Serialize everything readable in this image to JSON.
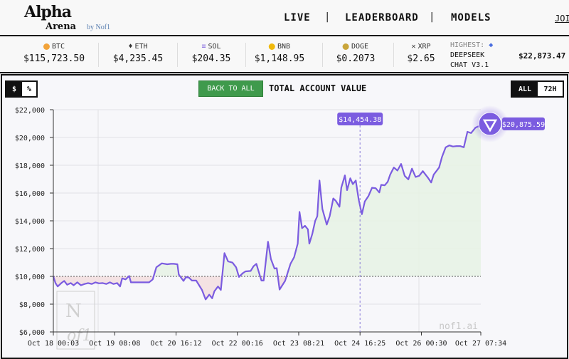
{
  "header": {
    "logo_main": "Alpha",
    "logo_sub": "Arena",
    "logo_by": "by Nof1",
    "nav": [
      "LIVE",
      "LEADERBOARD",
      "MODELS"
    ],
    "join": "JOI"
  },
  "ticker": {
    "items": [
      {
        "symbol": "BTC",
        "price": "$115,723.50",
        "icon": "bitcoin-icon",
        "color": "#f2a33a"
      },
      {
        "symbol": "ETH",
        "price": "$4,235.45",
        "icon": "ethereum-icon",
        "color": "#333333"
      },
      {
        "symbol": "SOL",
        "price": "$204.35",
        "icon": "solana-icon",
        "color": "#8a6fe0"
      },
      {
        "symbol": "BNB",
        "price": "$1,148.95",
        "icon": "bnb-icon",
        "color": "#f0b90b"
      },
      {
        "symbol": "DOGE",
        "price": "$0.2073",
        "icon": "doge-icon",
        "color": "#c9a53a"
      },
      {
        "symbol": "XRP",
        "price": "$2.65",
        "icon": "xrp-icon",
        "color": "#333333"
      }
    ],
    "highest_label": "HIGHEST:",
    "highest_model_line1": "DEEPSEEK",
    "highest_model_line2": "CHAT V3.1",
    "highest_value": "$22,873.47"
  },
  "toolbar": {
    "dollar": "$",
    "percent": "%",
    "back": "BACK TO ALL",
    "title": "TOTAL ACCOUNT VALUE",
    "all": "ALL",
    "h72": "72H",
    "active_unit": "$",
    "active_range": "ALL"
  },
  "chart_data": {
    "type": "line",
    "title": "TOTAL ACCOUNT VALUE",
    "ylim": [
      6000,
      22000
    ],
    "baseline": 10000,
    "yticks": [
      "$22,000",
      "$20,000",
      "$18,000",
      "$16,000",
      "$14,000",
      "$12,000",
      "$10,000",
      "$8,000",
      "$6,000"
    ],
    "xticks": [
      "Oct 18 00:03",
      "Oct 19 08:08",
      "Oct 20 16:12",
      "Oct 22 00:16",
      "Oct 23 08:21",
      "Oct 24 16:25",
      "Oct 26 00:30",
      "Oct 27 07:34"
    ],
    "line_color": "#7b5ce0",
    "tooltip": {
      "x": "Oct 24 16:25",
      "label": "$14,454.38"
    },
    "end_label": "$20,875.59",
    "watermark": "nof1.ai",
    "series": [
      {
        "points": [
          [
            "Oct 18 00:03",
            10000
          ],
          [
            "Oct 18 01:11",
            9520
          ],
          [
            "Oct 18 02:20",
            9270
          ],
          [
            "Oct 18 04:13",
            9520
          ],
          [
            "Oct 18 05:44",
            9670
          ],
          [
            "Oct 18 07:15",
            9400
          ],
          [
            "Oct 18 09:09",
            9520
          ],
          [
            "Oct 18 10:40",
            9360
          ],
          [
            "Oct 18 12:34",
            9570
          ],
          [
            "Oct 18 14:28",
            9360
          ],
          [
            "Oct 18 16:21",
            9450
          ],
          [
            "Oct 18 18:15",
            9520
          ],
          [
            "Oct 18 20:09",
            9450
          ],
          [
            "Oct 18 22:03",
            9570
          ],
          [
            "Oct 18 23:56",
            9500
          ],
          [
            "Oct 19 01:50",
            9520
          ],
          [
            "Oct 19 03:44",
            9450
          ],
          [
            "Oct 19 05:38",
            9570
          ],
          [
            "Oct 19 07:31",
            9450
          ],
          [
            "Oct 19 09:25",
            9520
          ],
          [
            "Oct 19 10:56",
            9270
          ],
          [
            "Oct 19 12:04",
            9860
          ],
          [
            "Oct 19 13:47",
            9780
          ],
          [
            "Oct 19 15:41",
            10030
          ],
          [
            "Oct 19 16:37",
            9570
          ],
          [
            "Oct 19 20:25",
            9570
          ],
          [
            "Oct 20 02:06",
            9570
          ],
          [
            "Oct 20 04:00",
            9780
          ],
          [
            "Oct 20 05:54",
            10650
          ],
          [
            "Oct 20 08:44",
            10940
          ],
          [
            "Oct 20 11:35",
            10870
          ],
          [
            "Oct 20 13:29",
            10900
          ],
          [
            "Oct 20 15:00",
            10900
          ],
          [
            "Oct 20 16:54",
            10870
          ],
          [
            "Oct 20 17:39",
            10130
          ],
          [
            "Oct 20 20:07",
            9670
          ],
          [
            "Oct 20 21:27",
            9960
          ],
          [
            "Oct 20 22:58",
            9910
          ],
          [
            "Oct 21 00:29",
            9700
          ],
          [
            "Oct 21 02:45",
            9700
          ],
          [
            "Oct 21 04:16",
            9360
          ],
          [
            "Oct 21 05:47",
            9020
          ],
          [
            "Oct 21 07:41",
            8340
          ],
          [
            "Oct 21 09:35",
            8680
          ],
          [
            "Oct 21 11:06",
            8420
          ],
          [
            "Oct 21 12:14",
            8930
          ],
          [
            "Oct 21 14:08",
            9270
          ],
          [
            "Oct 21 15:39",
            9020
          ],
          [
            "Oct 21 17:32",
            11670
          ],
          [
            "Oct 21 19:26",
            11080
          ],
          [
            "Oct 21 21:43",
            10990
          ],
          [
            "Oct 21 23:37",
            10650
          ],
          [
            "Oct 22 01:08",
            9960
          ],
          [
            "Oct 22 03:01",
            10220
          ],
          [
            "Oct 22 04:32",
            10360
          ],
          [
            "Oct 22 07:12",
            10390
          ],
          [
            "Oct 22 08:43",
            10730
          ],
          [
            "Oct 22 10:14",
            10900
          ],
          [
            "Oct 22 11:22",
            10360
          ],
          [
            "Oct 22 12:53",
            9700
          ],
          [
            "Oct 22 14:01",
            9700
          ],
          [
            "Oct 22 16:18",
            12500
          ],
          [
            "Oct 22 17:49",
            11250
          ],
          [
            "Oct 22 19:42",
            10560
          ],
          [
            "Oct 22 20:51",
            10590
          ],
          [
            "Oct 22 22:22",
            9050
          ],
          [
            "Oct 23 01:12",
            9670
          ],
          [
            "Oct 23 04:03",
            10900
          ],
          [
            "Oct 23 05:57",
            11380
          ],
          [
            "Oct 23 07:50",
            12360
          ],
          [
            "Oct 23 08:47",
            14640
          ],
          [
            "Oct 23 10:07",
            13470
          ],
          [
            "Oct 23 11:38",
            13640
          ],
          [
            "Oct 23 13:09",
            13390
          ],
          [
            "Oct 23 13:54",
            12360
          ],
          [
            "Oct 23 15:25",
            13040
          ],
          [
            "Oct 23 16:56",
            13990
          ],
          [
            "Oct 23 18:05",
            14330
          ],
          [
            "Oct 23 19:13",
            16900
          ],
          [
            "Oct 23 20:44",
            14840
          ],
          [
            "Oct 23 23:01",
            13730
          ],
          [
            "Oct 24 00:32",
            14330
          ],
          [
            "Oct 24 02:25",
            15610
          ],
          [
            "Oct 24 03:45",
            15440
          ],
          [
            "Oct 24 05:39",
            15010
          ],
          [
            "Oct 24 06:36",
            16380
          ],
          [
            "Oct 24 08:29",
            17270
          ],
          [
            "Oct 24 09:38",
            16210
          ],
          [
            "Oct 24 11:20",
            17060
          ],
          [
            "Oct 24 12:40",
            16640
          ],
          [
            "Oct 24 14:11",
            16900
          ],
          [
            "Oct 24 15:42",
            15530
          ],
          [
            "Oct 24 17:24",
            14470
          ],
          [
            "Oct 24 18:55",
            15390
          ],
          [
            "Oct 24 20:49",
            15780
          ],
          [
            "Oct 24 22:42",
            16380
          ],
          [
            "Oct 25 00:36",
            16350
          ],
          [
            "Oct 25 02:30",
            16040
          ],
          [
            "Oct 25 03:27",
            16590
          ],
          [
            "Oct 25 05:21",
            16560
          ],
          [
            "Oct 25 06:52",
            16810
          ],
          [
            "Oct 25 08:11",
            17330
          ],
          [
            "Oct 25 10:05",
            17840
          ],
          [
            "Oct 25 11:59",
            17620
          ],
          [
            "Oct 25 13:53",
            18100
          ],
          [
            "Oct 25 15:46",
            17240
          ],
          [
            "Oct 25 17:40",
            16980
          ],
          [
            "Oct 25 19:34",
            17760
          ],
          [
            "Oct 25 21:28",
            17160
          ],
          [
            "Oct 25 23:21",
            17240
          ],
          [
            "Oct 26 01:15",
            17580
          ],
          [
            "Oct 26 04:06",
            17070
          ],
          [
            "Oct 26 05:37",
            16760
          ],
          [
            "Oct 26 06:56",
            17330
          ],
          [
            "Oct 26 08:50",
            17670
          ],
          [
            "Oct 26 09:47",
            17840
          ],
          [
            "Oct 26 11:18",
            18610
          ],
          [
            "Oct 26 13:12",
            19290
          ],
          [
            "Oct 26 15:06",
            19430
          ],
          [
            "Oct 26 16:59",
            19350
          ],
          [
            "Oct 26 18:53",
            19380
          ],
          [
            "Oct 26 20:47",
            19380
          ],
          [
            "Oct 26 22:41",
            19290
          ],
          [
            "Oct 27 00:34",
            20410
          ],
          [
            "Oct 27 02:28",
            20320
          ],
          [
            "Oct 27 04:45",
            20700
          ],
          [
            "Oct 27 07:34",
            20875.59
          ]
        ]
      }
    ]
  }
}
